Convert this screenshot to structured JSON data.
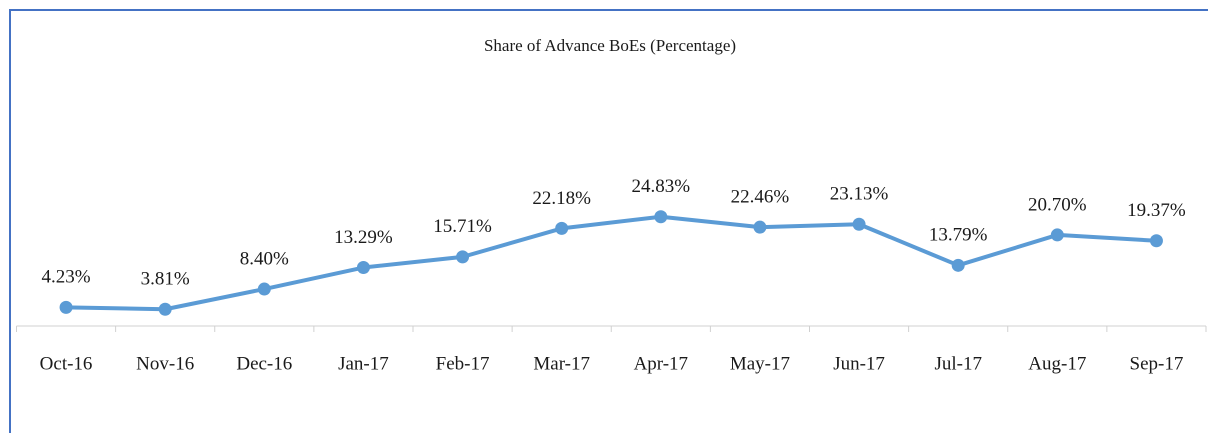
{
  "chart_data": {
    "type": "line",
    "title": "Share of Advance BoEs (Percentage)",
    "categories": [
      "Oct-16",
      "Nov-16",
      "Dec-16",
      "Jan-17",
      "Feb-17",
      "Mar-17",
      "Apr-17",
      "May-17",
      "Jun-17",
      "Jul-17",
      "Aug-17",
      "Sep-17"
    ],
    "series": [
      {
        "name": "Share of Advance BoEs",
        "color": "#5b9bd5",
        "values": [
          4.23,
          3.81,
          8.4,
          13.29,
          15.71,
          22.18,
          24.83,
          22.46,
          23.13,
          13.79,
          20.7,
          19.37
        ],
        "value_labels": [
          "4.23%",
          "3.81%",
          "8.40%",
          "13.29%",
          "15.71%",
          "22.18%",
          "24.83%",
          "22.46%",
          "23.13%",
          "13.79%",
          "20.70%",
          "19.37%"
        ]
      }
    ],
    "ylim": [
      0,
      30
    ]
  }
}
